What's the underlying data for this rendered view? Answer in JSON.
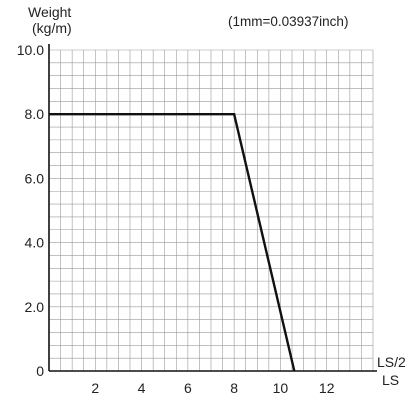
{
  "chart_data": {
    "type": "line",
    "title": "",
    "ylabel": [
      "Weight",
      "(kg/m)"
    ],
    "xlabel": [
      "LS/2",
      "LS"
    ],
    "note": "(1mm=0.03937inch)",
    "xlim": [
      0,
      14
    ],
    "ylim": [
      0,
      10
    ],
    "x_ticks": [
      {
        "value": 2,
        "label": "2"
      },
      {
        "value": 4,
        "label": "4"
      },
      {
        "value": 6,
        "label": "6"
      },
      {
        "value": 8,
        "label": "8"
      },
      {
        "value": 10,
        "label": "10"
      },
      {
        "value": 12,
        "label": "12"
      }
    ],
    "y_ticks": [
      {
        "value": 0,
        "label": "0"
      },
      {
        "value": 2,
        "label": "2.0"
      },
      {
        "value": 4,
        "label": "4.0"
      },
      {
        "value": 6,
        "label": "6.0"
      },
      {
        "value": 8,
        "label": "8.0"
      },
      {
        "value": 10,
        "label": "10.0"
      }
    ],
    "grid": true,
    "series": [
      {
        "x": [
          0,
          8,
          10.6
        ],
        "y": [
          8.0,
          8.0,
          0
        ],
        "color": "#111111"
      }
    ]
  }
}
